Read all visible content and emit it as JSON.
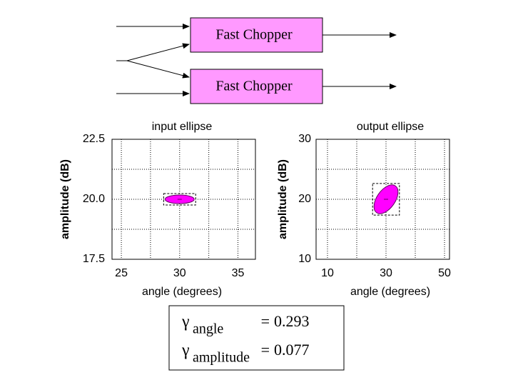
{
  "diagram": {
    "nodes": [
      {
        "label": "Fast Chopper"
      },
      {
        "label": "Fast Chopper"
      }
    ]
  },
  "chart_data": [
    {
      "type": "ellipse",
      "title": "input ellipse",
      "x_label": "angle (degrees)",
      "y_label": "amplitude (dB)",
      "xlim": [
        24.2,
        36.5
      ],
      "ylim": [
        17.5,
        22.5
      ],
      "xticks": [
        25,
        30,
        35
      ],
      "yticks": [
        22.5,
        {
          "value": 20,
          "label": "20.0"
        },
        17.5
      ],
      "xgrid": [
        25,
        27.5,
        30,
        32.5,
        35
      ],
      "ygrid": [
        17.5,
        18.75,
        20,
        21.25,
        22.5
      ],
      "ellipse": {
        "x": 30,
        "y": 20,
        "rx": 1.25,
        "ry": 0.18,
        "rotation": 0
      },
      "color": "#ff00ff"
    },
    {
      "type": "ellipse",
      "title": "output ellipse",
      "x_label": "angle (degrees)",
      "y_label": "amplitude (dB)",
      "xlim": [
        6.1,
        51.7
      ],
      "ylim": [
        10,
        30
      ],
      "xticks": [
        10,
        30,
        50
      ],
      "yticks": [
        30,
        20,
        10
      ],
      "xgrid": [
        10,
        20,
        30,
        40,
        50
      ],
      "ygrid": [
        10,
        15,
        20,
        25,
        30
      ],
      "ellipse": {
        "x": 30,
        "y": 20,
        "rx": 4.1,
        "ry": 2.4,
        "rotation": -55
      },
      "color": "#ff00ff"
    }
  ],
  "formula": {
    "rows": [
      {
        "symbol": "γ",
        "subscript": "angle",
        "relation": "=",
        "value": 0.293
      },
      {
        "symbol": "γ",
        "subscript": "amplitude",
        "relation": "=",
        "value": 0.077
      }
    ]
  }
}
